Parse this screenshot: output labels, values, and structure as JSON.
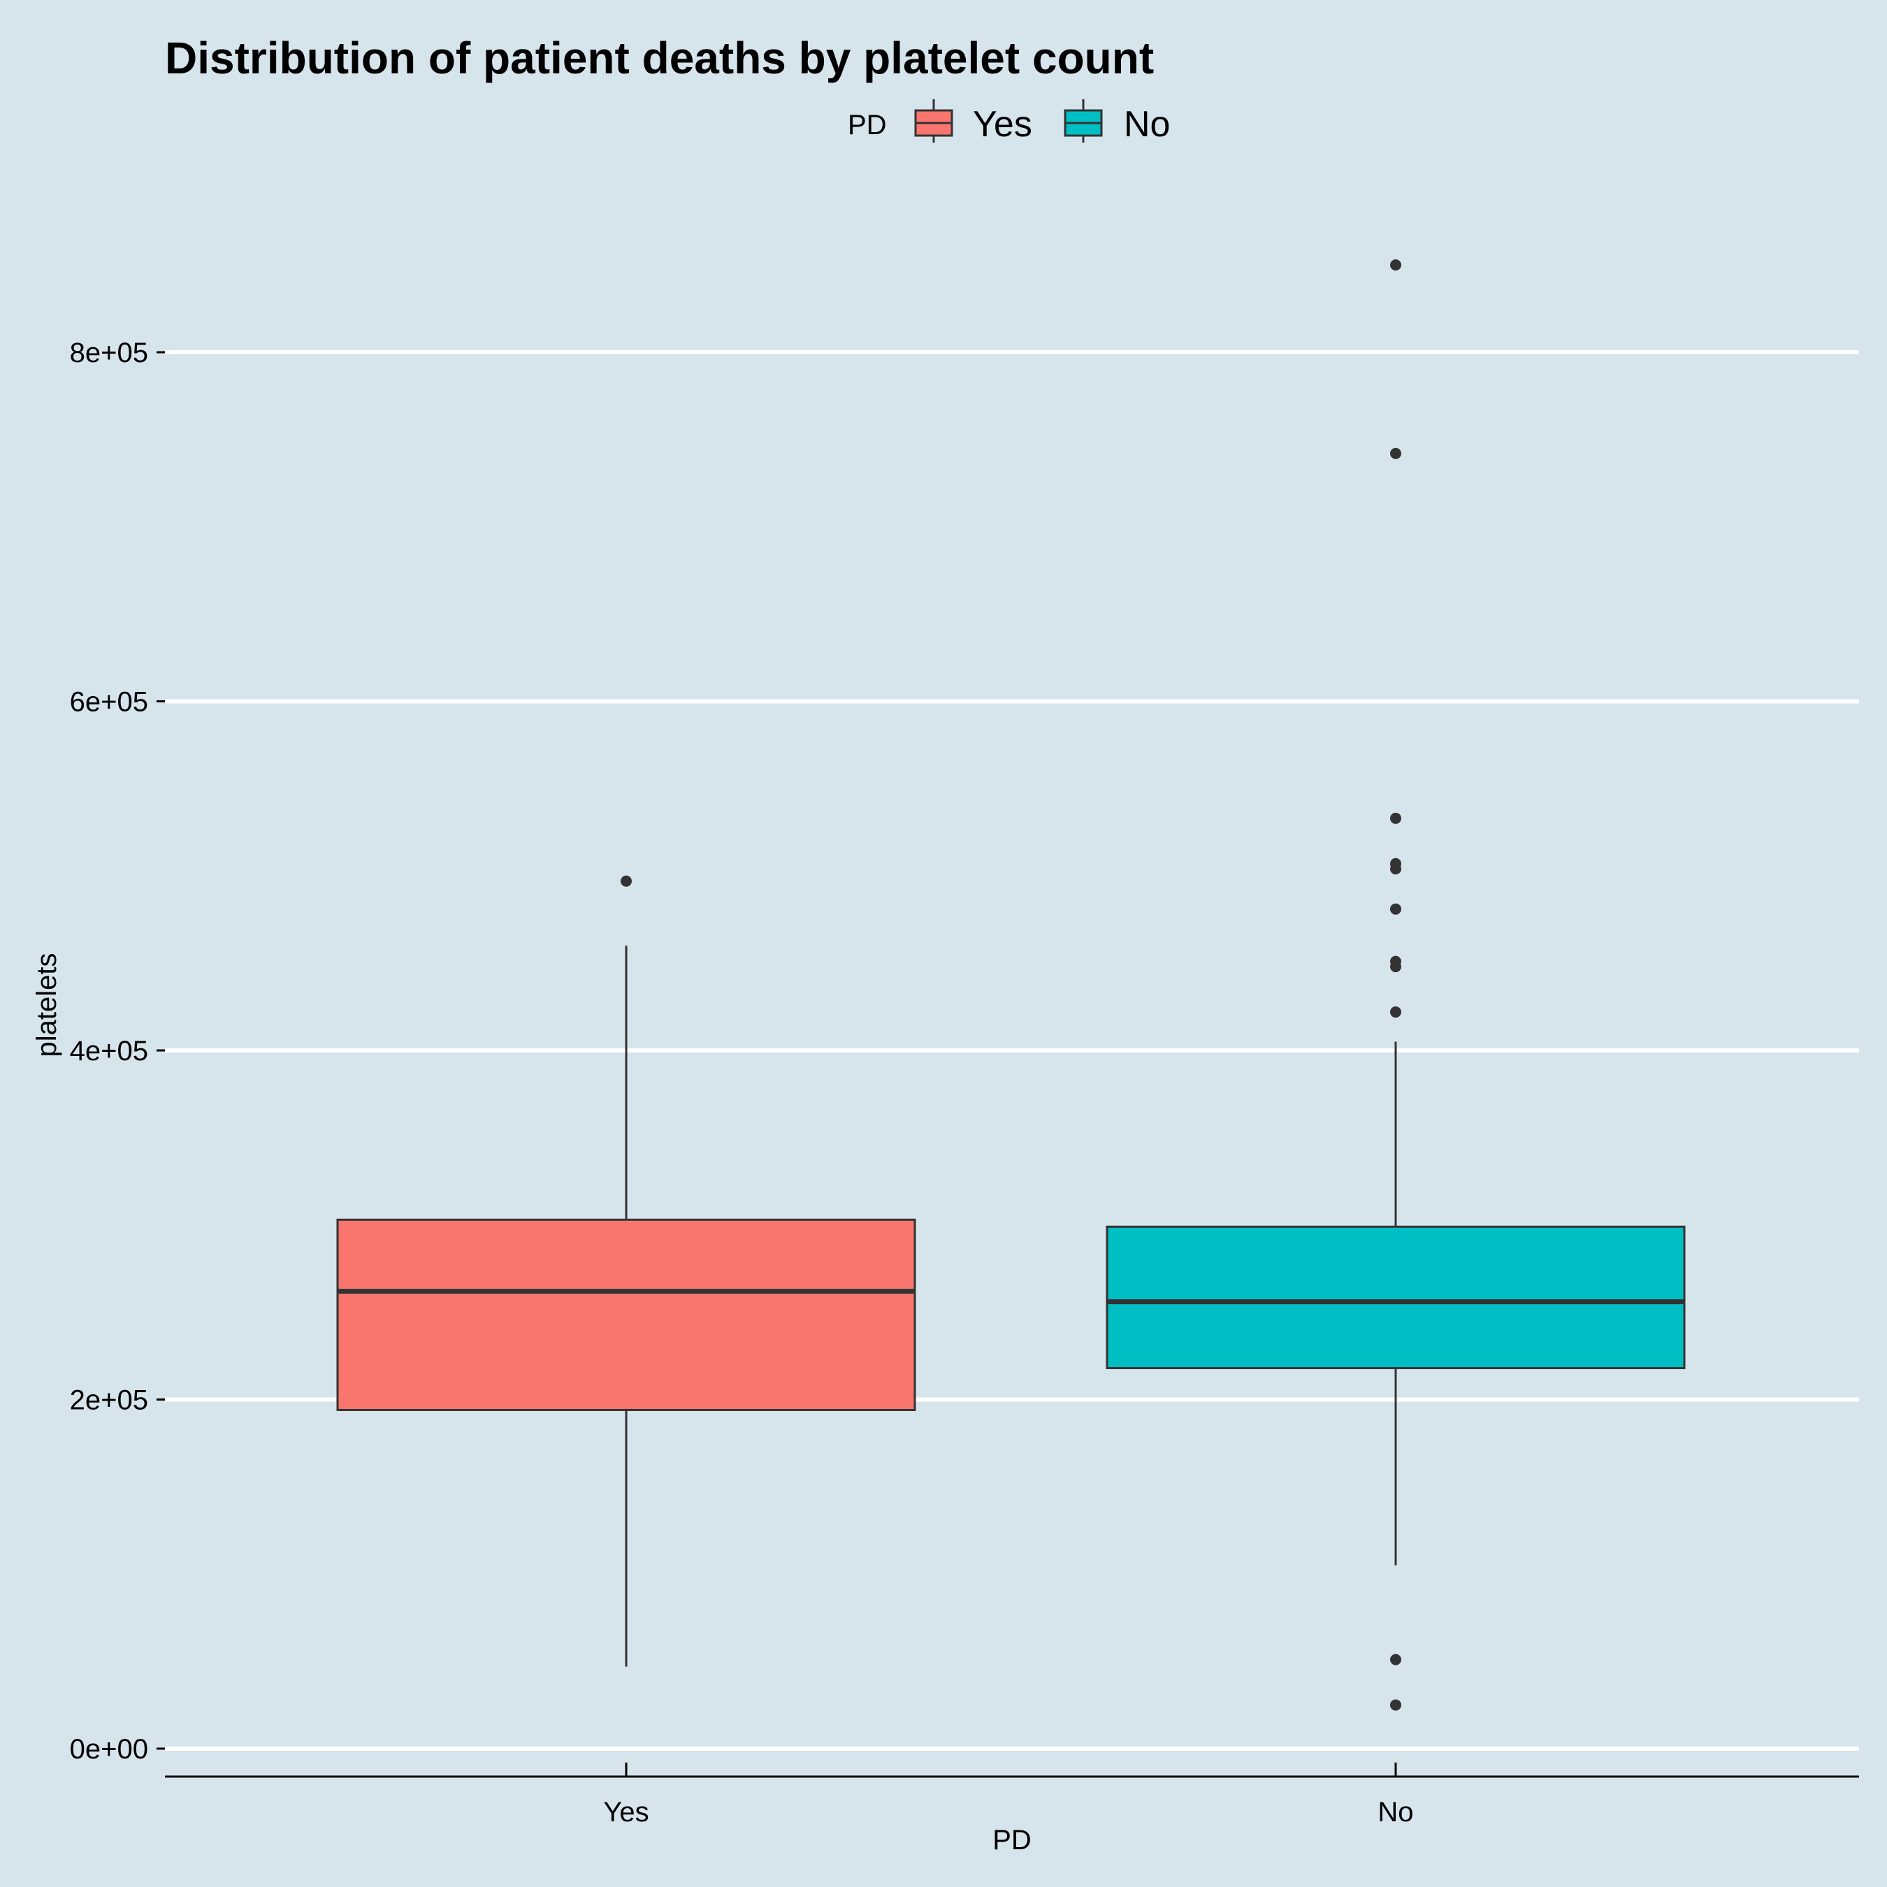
{
  "chart_data": {
    "type": "box",
    "title": "Distribution of patient deaths by platelet count",
    "xlabel": "PD",
    "ylabel": "platelets",
    "ylim": [
      -40000,
      880000
    ],
    "yticks": [
      0,
      200000,
      400000,
      600000,
      800000
    ],
    "ytick_labels": [
      "0e+00",
      "2e+05",
      "4e+05",
      "6e+05",
      "8e+05"
    ],
    "categories": [
      "Yes",
      "No"
    ],
    "grid": "horizontal",
    "legend": {
      "title": "PD",
      "position": "top",
      "entries": [
        {
          "label": "Yes",
          "color": "#f8766d"
        },
        {
          "label": "No",
          "color": "#00bfc4"
        }
      ]
    },
    "boxes": [
      {
        "category": "Yes",
        "color": "#f8766d",
        "whisker_low": 47000,
        "q1": 194000,
        "median": 262000,
        "q3": 303000,
        "whisker_high": 460000,
        "outliers": [
          497000
        ]
      },
      {
        "category": "No",
        "color": "#00bfc4",
        "whisker_low": 105000,
        "q1": 218000,
        "median": 256000,
        "q3": 299000,
        "whisker_high": 405000,
        "outliers": [
          850000,
          742000,
          533000,
          507000,
          504000,
          481000,
          451000,
          448000,
          422000,
          51000,
          25000
        ]
      }
    ]
  }
}
